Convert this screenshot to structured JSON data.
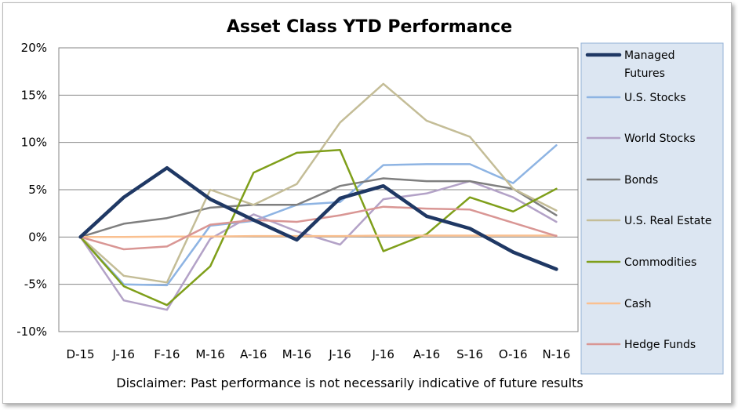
{
  "chart_data": {
    "type": "line",
    "title": "Asset Class YTD Performance",
    "categories": [
      "D-15",
      "J-16",
      "F-16",
      "M-16",
      "A-16",
      "M-16",
      "J-16",
      "J-16",
      "A-16",
      "S-16",
      "O-16",
      "N-16"
    ],
    "ylim": [
      -10,
      20
    ],
    "yticks": [
      -10,
      -5,
      0,
      5,
      10,
      15,
      20
    ],
    "ytick_labels": [
      "-10%",
      "-5%",
      "0%",
      "5%",
      "10%",
      "15%",
      "20%"
    ],
    "grid": true,
    "legend_position": "right",
    "series": [
      {
        "name": "Managed Futures",
        "color": "#1f3864",
        "width": 4.5,
        "values": [
          0,
          4.2,
          7.3,
          4.0,
          1.8,
          -0.3,
          4.1,
          5.4,
          2.2,
          0.9,
          -1.6,
          -3.4
        ]
      },
      {
        "name": "U.S. Stocks",
        "color": "#8eb4e3",
        "width": 2.5,
        "values": [
          0,
          -5.0,
          -5.1,
          1.2,
          1.7,
          3.4,
          3.7,
          7.6,
          7.7,
          7.7,
          5.7,
          9.7
        ]
      },
      {
        "name": "World Stocks",
        "color": "#b3a2c7",
        "width": 2.5,
        "values": [
          0,
          -6.7,
          -7.7,
          -0.2,
          2.4,
          0.6,
          -0.8,
          4.0,
          4.6,
          5.9,
          4.2,
          1.6
        ]
      },
      {
        "name": "Bonds",
        "color": "#7f7f7f",
        "width": 2.5,
        "values": [
          0,
          1.4,
          2.0,
          3.1,
          3.4,
          3.4,
          5.4,
          6.2,
          5.9,
          5.9,
          5.1,
          2.3
        ]
      },
      {
        "name": "U.S. Real Estate",
        "color": "#c4bd97",
        "width": 2.5,
        "values": [
          0,
          -4.1,
          -4.8,
          5.0,
          3.4,
          5.6,
          12.1,
          16.2,
          12.3,
          10.6,
          5.1,
          2.8
        ]
      },
      {
        "name": "Commodities",
        "color": "#7f9f1a",
        "width": 2.5,
        "values": [
          0,
          -5.2,
          -7.2,
          -3.1,
          6.8,
          8.9,
          9.2,
          -1.5,
          0.3,
          4.2,
          2.7,
          5.1
        ]
      },
      {
        "name": "Cash",
        "color": "#fac090",
        "width": 2.5,
        "values": [
          0,
          0.0,
          0.05,
          0.05,
          0.1,
          0.1,
          0.1,
          0.15,
          0.15,
          0.15,
          0.15,
          0.15
        ]
      },
      {
        "name": "Hedge Funds",
        "color": "#d99694",
        "width": 2.5,
        "values": [
          0,
          -1.3,
          -1.0,
          1.3,
          1.8,
          1.6,
          2.3,
          3.2,
          3.0,
          2.9,
          1.5,
          0.1
        ]
      }
    ]
  },
  "disclaimer": "Disclaimer: Past performance is not necessarily indicative of future results"
}
